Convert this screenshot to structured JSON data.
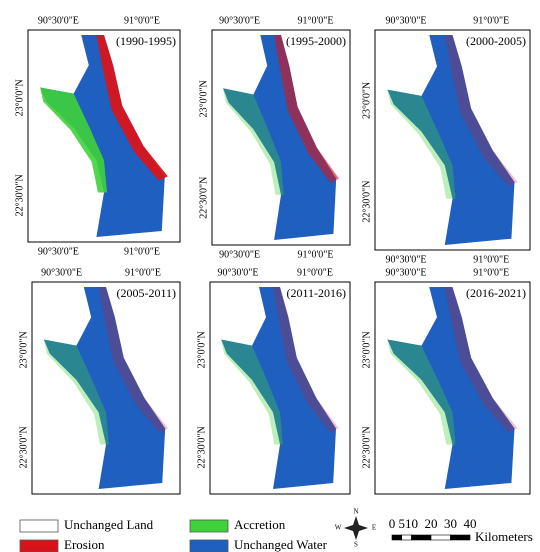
{
  "graticule": {
    "lon": [
      "90°30'0\"E",
      "91°0'0\"E"
    ],
    "lat": [
      "23°0'0\"N",
      "22°30'0\"N"
    ]
  },
  "panels": [
    {
      "period": "(1990-1995)"
    },
    {
      "period": "(1995-2000)"
    },
    {
      "period": "(2000-2005)"
    },
    {
      "period": "(2005-2011)"
    },
    {
      "period": "(2011-2016)"
    },
    {
      "period": "(2016-2021)"
    }
  ],
  "legend": [
    {
      "label": "Unchanged Land",
      "color": "#ffffff"
    },
    {
      "label": "Accretion",
      "color": "#3fd13a"
    },
    {
      "label": "Erosion",
      "color": "#d8141b"
    },
    {
      "label": "Unchanged Water",
      "color": "#1f5fbf"
    }
  ],
  "compass": {
    "n": "N",
    "e": "E",
    "s": "S",
    "w": "W"
  },
  "scale_bar": {
    "ticks": [
      0,
      5,
      10,
      20,
      30,
      40
    ],
    "unit": "Kilometers"
  }
}
